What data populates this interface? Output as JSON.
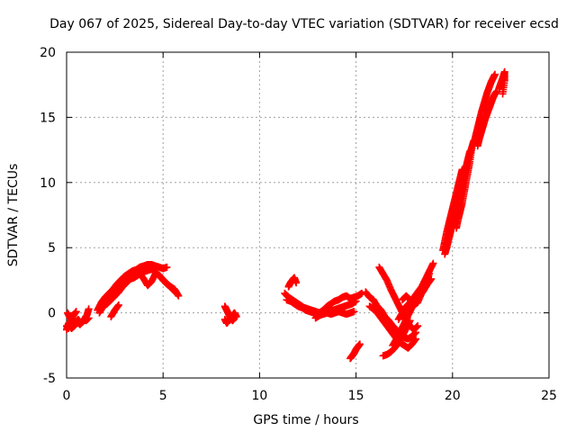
{
  "chart_data": {
    "type": "scatter",
    "title": "Day 067 of 2025, Sidereal Day-to-day VTEC variation (SDTVAR) for receiver ecsd",
    "xlabel": "GPS time / hours",
    "ylabel": "SDTVAR / TECUs",
    "xlim": [
      0,
      25
    ],
    "ylim": [
      -5,
      20
    ],
    "xticks": [
      0,
      5,
      10,
      15,
      20,
      25
    ],
    "yticks": [
      -5,
      0,
      5,
      10,
      15,
      20
    ],
    "grid": true,
    "marker": "plus",
    "series": [
      {
        "name": "SDTVAR",
        "color": "#ff0000",
        "segments": [
          {
            "x": [
              0.0,
              0.1,
              0.2,
              0.3,
              0.45,
              0.6,
              0.75,
              0.9,
              1.05,
              1.15
            ],
            "y": [
              -1.0,
              -1.2,
              -0.6,
              -1.0,
              -0.8,
              -0.5,
              -0.8,
              -0.6,
              -0.2,
              0.3
            ]
          },
          {
            "x": [
              0.0,
              0.1,
              0.25,
              0.4,
              0.55,
              0.7,
              0.85,
              1.0,
              1.15
            ],
            "y": [
              -1.3,
              -0.8,
              -1.2,
              -1.0,
              -0.7,
              -0.9,
              -0.5,
              -0.6,
              -0.4
            ]
          },
          {
            "x": [
              0.05,
              0.15,
              0.25,
              0.35,
              0.5
            ],
            "y": [
              0.0,
              -0.3,
              -0.5,
              -0.2,
              0.1
            ]
          },
          {
            "x": [
              1.6,
              1.8,
              2.0,
              2.2,
              2.4,
              2.6,
              2.8,
              3.0,
              3.2,
              3.4,
              3.6,
              3.8,
              4.0,
              4.2,
              4.4,
              4.6,
              4.8,
              5.0,
              5.2
            ],
            "y": [
              0.2,
              0.8,
              1.2,
              1.5,
              1.8,
              2.2,
              2.5,
              2.8,
              3.0,
              3.2,
              3.3,
              3.5,
              3.6,
              3.7,
              3.7,
              3.6,
              3.5,
              3.4,
              3.5
            ]
          },
          {
            "x": [
              1.7,
              1.9,
              2.1,
              2.3,
              2.5,
              2.7,
              2.9,
              3.1,
              3.3,
              3.5,
              3.7,
              3.9,
              4.1,
              4.3,
              4.5
            ],
            "y": [
              0.0,
              0.5,
              0.7,
              1.0,
              1.3,
              1.6,
              2.0,
              2.3,
              2.6,
              2.7,
              2.9,
              3.1,
              3.2,
              3.3,
              3.4
            ]
          },
          {
            "x": [
              2.2,
              2.4,
              2.6,
              2.8,
              3.0,
              3.2,
              3.4,
              3.6,
              3.8,
              4.0,
              4.2,
              4.4,
              4.6
            ],
            "y": [
              0.9,
              1.4,
              1.8,
              2.2,
              2.5,
              2.7,
              2.9,
              3.0,
              3.0,
              2.6,
              2.1,
              2.4,
              3.0
            ]
          },
          {
            "x": [
              2.3,
              2.5,
              2.7
            ],
            "y": [
              -0.3,
              0.2,
              0.6
            ]
          },
          {
            "x": [
              4.8,
              5.0,
              5.2,
              5.4,
              5.6,
              5.8
            ],
            "y": [
              2.9,
              2.5,
              2.2,
              2.0,
              1.8,
              1.3
            ]
          },
          {
            "x": [
              4.5,
              4.7,
              4.9,
              5.1,
              5.3,
              5.5,
              5.7
            ],
            "y": [
              3.2,
              3.0,
              2.7,
              2.4,
              2.1,
              1.8,
              1.5
            ]
          },
          {
            "x": [
              8.2,
              8.3,
              8.4,
              8.5,
              8.6,
              8.7,
              8.8
            ],
            "y": [
              0.5,
              0.2,
              -0.1,
              -0.4,
              -0.2,
              0.0,
              -0.3
            ]
          },
          {
            "x": [
              8.2,
              8.3,
              8.4,
              8.5,
              8.6,
              8.7
            ],
            "y": [
              -0.5,
              -0.8,
              -0.6,
              -0.3,
              -0.6,
              -0.4
            ]
          },
          {
            "x": [
              11.3,
              11.5,
              11.7,
              11.9,
              12.1,
              12.3,
              12.5,
              12.7,
              12.9,
              13.1,
              13.3,
              13.5,
              13.7,
              13.9,
              14.1,
              14.3,
              14.5,
              14.7,
              14.9,
              15.1,
              15.3
            ],
            "y": [
              1.5,
              1.2,
              1.0,
              0.8,
              0.6,
              0.4,
              0.3,
              0.2,
              0.1,
              0.0,
              0.2,
              0.5,
              0.7,
              0.9,
              1.0,
              1.2,
              1.3,
              1.1,
              1.2,
              1.3,
              1.5
            ]
          },
          {
            "x": [
              11.4,
              11.6,
              11.8,
              12.0,
              12.2,
              12.4,
              12.6,
              12.8,
              13.0,
              13.2,
              13.4,
              13.6,
              13.8,
              14.0,
              14.2,
              14.4,
              14.6,
              14.8,
              15.0
            ],
            "y": [
              1.0,
              0.9,
              0.7,
              0.5,
              0.4,
              0.2,
              0.1,
              0.0,
              -0.2,
              -0.1,
              0.0,
              0.1,
              0.2,
              0.3,
              0.4,
              0.5,
              0.6,
              0.7,
              0.9
            ]
          },
          {
            "x": [
              11.5,
              11.6,
              11.7,
              11.8,
              11.9
            ],
            "y": [
              2.0,
              2.3,
              2.5,
              2.7,
              2.3
            ]
          },
          {
            "x": [
              12.9,
              13.1,
              13.3,
              13.5,
              13.7,
              13.9,
              14.1,
              14.3,
              14.5,
              14.7,
              14.9
            ],
            "y": [
              -0.4,
              -0.2,
              -0.1,
              0.0,
              -0.1,
              0.0,
              0.1,
              0.0,
              -0.1,
              0.0,
              0.1
            ]
          },
          {
            "x": [
              14.7,
              14.8,
              14.9,
              15.0,
              15.1,
              15.2
            ],
            "y": [
              -3.5,
              -3.3,
              -3.1,
              -2.8,
              -2.6,
              -2.4
            ]
          },
          {
            "x": [
              15.5,
              15.7,
              15.9,
              16.1,
              16.3,
              16.5,
              16.7,
              16.9,
              17.1,
              17.3,
              17.5,
              17.7,
              17.9,
              18.1
            ],
            "y": [
              1.6,
              1.2,
              1.0,
              0.5,
              0.2,
              -0.3,
              -0.6,
              -1.0,
              -1.3,
              -1.6,
              -1.9,
              -2.0,
              -1.8,
              -1.5
            ]
          },
          {
            "x": [
              15.7,
              15.9,
              16.1,
              16.3,
              16.5,
              16.7,
              16.9,
              17.1,
              17.3,
              17.5,
              17.7,
              17.9,
              18.1
            ],
            "y": [
              0.5,
              0.3,
              0.0,
              -0.4,
              -0.8,
              -1.2,
              -1.6,
              -2.0,
              -2.3,
              -2.5,
              -2.7,
              -2.4,
              -2.0
            ]
          },
          {
            "x": [
              16.2,
              16.4,
              16.6,
              16.8,
              17.0,
              17.2,
              17.4,
              17.6,
              17.8,
              18.0,
              18.2
            ],
            "y": [
              3.5,
              3.0,
              2.5,
              1.8,
              1.2,
              0.6,
              0.0,
              -0.6,
              -1.0,
              -1.3,
              -1.0
            ]
          },
          {
            "x": [
              16.4,
              16.6,
              16.8,
              17.0,
              17.2,
              17.4,
              17.6,
              17.8
            ],
            "y": [
              -3.3,
              -3.2,
              -3.0,
              -2.7,
              -2.3,
              -1.8,
              -1.2,
              -0.6
            ]
          },
          {
            "x": [
              16.9,
              17.1,
              17.3,
              17.5,
              17.7,
              17.9,
              18.1,
              18.3,
              18.5,
              18.7,
              18.9
            ],
            "y": [
              -2.5,
              -2.0,
              -1.4,
              -0.8,
              -0.2,
              0.4,
              0.9,
              1.3,
              1.7,
              2.2,
              2.6
            ]
          },
          {
            "x": [
              17.2,
              17.4,
              17.6,
              17.8,
              18.0,
              18.2,
              18.4,
              18.6,
              18.8,
              19.0
            ],
            "y": [
              -0.5,
              0.0,
              0.5,
              0.8,
              1.2,
              1.6,
              2.0,
              2.6,
              3.2,
              3.8
            ]
          },
          {
            "x": [
              17.4,
              17.6,
              17.8,
              18.0,
              18.2,
              18.4,
              18.6,
              18.8
            ],
            "y": [
              1.0,
              1.3,
              1.0,
              0.6,
              0.8,
              1.5,
              2.2,
              3.0
            ]
          },
          {
            "x": [
              19.5,
              19.6,
              19.7,
              19.8,
              19.9,
              20.0,
              20.1,
              20.2,
              20.3,
              20.4,
              20.5
            ],
            "y": [
              4.8,
              5.5,
              6.2,
              6.8,
              7.4,
              8.0,
              8.6,
              9.2,
              9.8,
              10.4,
              11.0
            ]
          },
          {
            "x": [
              19.6,
              19.7,
              19.8,
              19.9,
              20.0,
              20.1,
              20.2,
              20.3,
              20.4,
              20.5,
              20.6,
              20.7,
              20.8,
              20.9,
              21.0,
              21.1
            ],
            "y": [
              4.5,
              5.0,
              5.6,
              6.2,
              6.8,
              7.4,
              8.0,
              8.6,
              9.2,
              9.8,
              10.4,
              11.0,
              11.6,
              12.2,
              12.7,
              13.2
            ]
          },
          {
            "x": [
              19.8,
              19.9,
              20.0,
              20.1,
              20.2,
              20.3,
              20.4,
              20.5,
              20.6,
              20.7,
              20.8,
              20.9
            ],
            "y": [
              6.0,
              6.5,
              7.0,
              7.6,
              8.2,
              8.8,
              9.4,
              10.0,
              10.6,
              11.2,
              11.8,
              12.4
            ]
          },
          {
            "x": [
              20.2,
              20.3,
              20.4,
              20.5,
              20.6,
              20.7,
              20.8,
              20.9,
              21.0
            ],
            "y": [
              6.5,
              7.2,
              7.8,
              8.4,
              9.2,
              10.0,
              10.8,
              11.6,
              12.6
            ]
          },
          {
            "x": [
              21.1,
              21.2,
              21.3,
              21.4,
              21.5,
              21.6,
              21.7,
              21.8,
              21.9,
              22.0,
              22.1,
              22.2
            ],
            "y": [
              13.0,
              13.6,
              14.2,
              14.8,
              15.4,
              15.9,
              16.4,
              16.9,
              17.3,
              17.7,
              18.0,
              18.3
            ]
          },
          {
            "x": [
              21.3,
              21.4,
              21.5,
              21.6,
              21.7,
              21.8,
              21.9,
              22.0,
              22.1,
              22.2,
              22.3
            ],
            "y": [
              12.8,
              13.4,
              13.9,
              14.4,
              14.9,
              15.3,
              15.7,
              16.1,
              16.5,
              16.8,
              17.0
            ]
          },
          {
            "x": [
              22.4,
              22.5,
              22.6,
              22.7,
              22.7,
              22.6
            ],
            "y": [
              17.2,
              17.6,
              18.0,
              18.5,
              17.8,
              16.8
            ]
          }
        ]
      }
    ]
  }
}
